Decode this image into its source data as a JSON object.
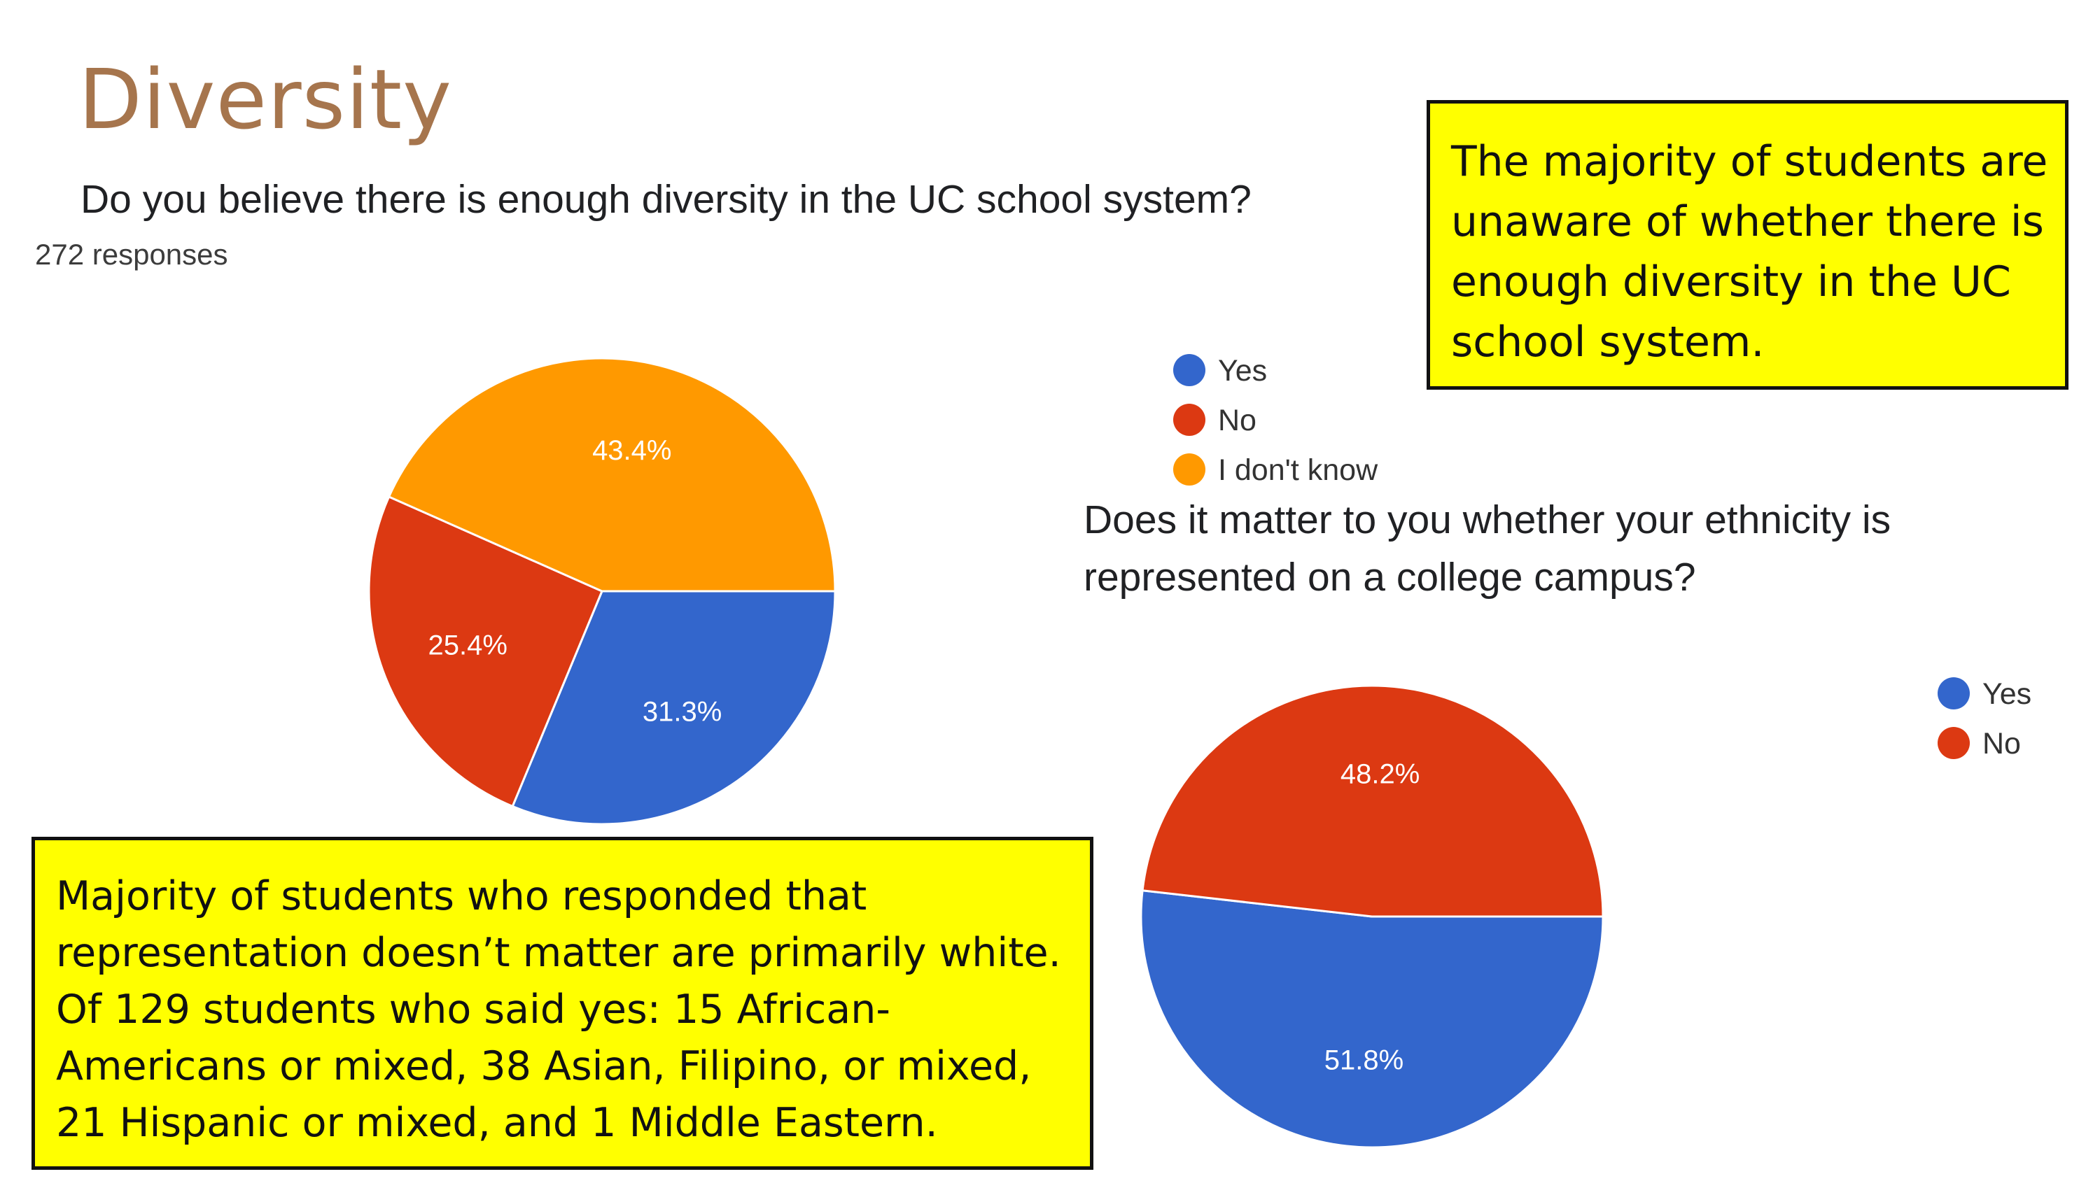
{
  "slide": {
    "title": "Diversity"
  },
  "question1": {
    "title": "Do you believe there is enough diversity in the UC school system?",
    "responses": "272 responses"
  },
  "question2": {
    "title": "Does it matter to you whether your ethnicity is represented on a college campus?"
  },
  "callouts": {
    "top": "The majority of students are unaware of whether there is enough diversity in the UC school system.",
    "bottom": "Majority of students who responded that representation doesn’t matter are primarily white. Of 129 students who said yes: 15 African-Americans or mixed, 38 Asian, Filipino, or mixed, 21  Hispanic or mixed, and 1 Middle Eastern."
  },
  "colors": {
    "yes": "#3366cc",
    "no": "#dc3912",
    "dont_know": "#ff9900",
    "callout_bg": "#ffff00",
    "title": "#a6754d"
  },
  "chart_data": [
    {
      "type": "pie",
      "title": "Do you believe there is enough diversity in the UC school system?",
      "categories": [
        "Yes",
        "No",
        "I don't know"
      ],
      "values": [
        31.3,
        25.4,
        43.4
      ],
      "labels": [
        "31.3%",
        "25.4%",
        "43.4%"
      ],
      "colors": [
        "#3366cc",
        "#dc3912",
        "#ff9900"
      ],
      "legend": "right"
    },
    {
      "type": "pie",
      "title": "Does it matter to you whether your ethnicity is represented on a college campus?",
      "categories": [
        "Yes",
        "No"
      ],
      "values": [
        51.8,
        48.2
      ],
      "labels": [
        "51.8%",
        "48.2%"
      ],
      "colors": [
        "#3366cc",
        "#dc3912"
      ],
      "legend": "right"
    }
  ]
}
